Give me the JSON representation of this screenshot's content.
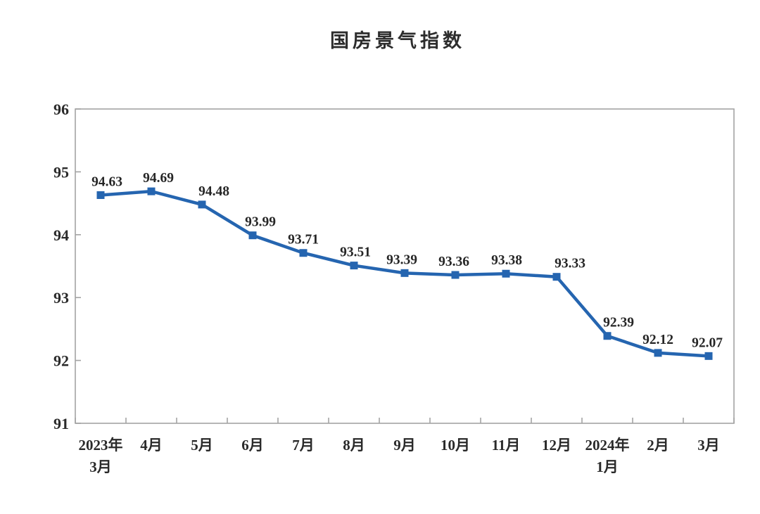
{
  "chart_data": {
    "type": "line",
    "title": "国房景气指数",
    "categories": [
      [
        "2023年",
        "3月"
      ],
      [
        "4月"
      ],
      [
        "5月"
      ],
      [
        "6月"
      ],
      [
        "7月"
      ],
      [
        "8月"
      ],
      [
        "9月"
      ],
      [
        "10月"
      ],
      [
        "11月"
      ],
      [
        "12月"
      ],
      [
        "2024年",
        "1月"
      ],
      [
        "2月"
      ],
      [
        "3月"
      ]
    ],
    "series": [
      {
        "name": "国房景气指数",
        "values": [
          94.63,
          94.69,
          94.48,
          93.99,
          93.71,
          93.51,
          93.39,
          93.36,
          93.38,
          93.33,
          92.39,
          92.12,
          92.07
        ],
        "point_labels": [
          "94.63",
          "94.69",
          "94.48",
          "93.99",
          "93.71",
          "93.51",
          "93.39",
          "93.36",
          "93.38",
          "93.33",
          "92.39",
          "92.12",
          "92.07"
        ]
      }
    ],
    "xlabel": "",
    "ylabel": "",
    "ylim": [
      91,
      96
    ],
    "ytick_step": 1,
    "yticks": [
      "96",
      "95",
      "94",
      "93",
      "92",
      "91"
    ],
    "grid": false,
    "legend": "none",
    "line_color": "#2565b0",
    "marker": "square",
    "marker_size": 11,
    "axis_color": "#a3a3a3",
    "label_dx": [
      9,
      10,
      17,
      11,
      0,
      2,
      -4,
      -2,
      1,
      19,
      16,
      0,
      -2
    ]
  }
}
